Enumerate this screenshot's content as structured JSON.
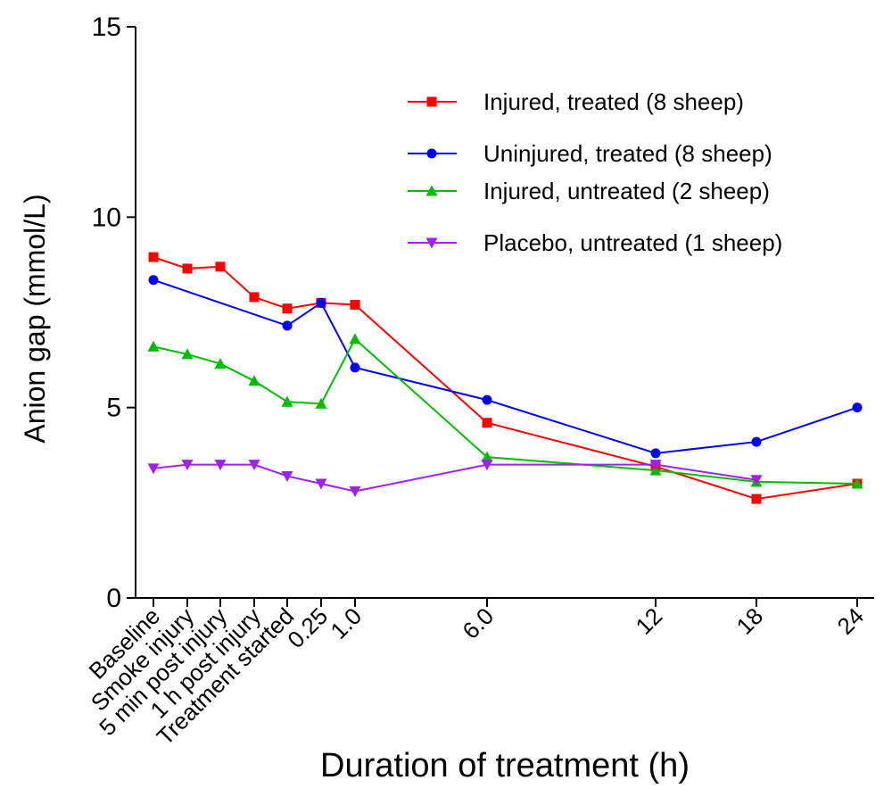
{
  "chart_data": {
    "type": "line",
    "xlabel": "Duration of treatment (h)",
    "ylabel": "Anion gap (mmol/L)",
    "ylim": [
      0,
      15
    ],
    "yticks": [
      "0",
      "5",
      "10",
      "15"
    ],
    "categories": [
      "Baseline",
      "Smoke injury",
      "5 min post injury",
      "1 h post injury",
      "Treatment started",
      "0.25",
      "1.0",
      "6.0",
      "12",
      "18",
      "24"
    ],
    "legend_position": "top-right",
    "grid": false,
    "series": [
      {
        "name": "Injured, treated (8 sheep)",
        "color": "#ff0000",
        "marker": "square",
        "values": [
          8.95,
          8.65,
          8.7,
          7.9,
          7.6,
          7.75,
          7.7,
          4.6,
          3.45,
          2.6,
          3.0
        ]
      },
      {
        "name": "Uninjured, treated (8 sheep)",
        "color": "#0000ff",
        "marker": "circle",
        "values": [
          8.35,
          null,
          null,
          null,
          7.15,
          7.75,
          6.05,
          5.2,
          3.8,
          4.1,
          5.0
        ]
      },
      {
        "name": "Injured, untreated (2 sheep)",
        "color": "#00bb00",
        "marker": "triangle-up",
        "values": [
          6.6,
          6.4,
          6.15,
          5.7,
          5.15,
          5.1,
          6.8,
          3.7,
          3.35,
          3.05,
          3.0
        ]
      },
      {
        "name": "Placebo, untreated (1 sheep)",
        "color": "#a020f0",
        "marker": "triangle-down",
        "values": [
          3.4,
          3.5,
          3.5,
          3.5,
          3.2,
          3.0,
          2.8,
          3.5,
          3.5,
          3.1,
          null
        ]
      }
    ]
  }
}
